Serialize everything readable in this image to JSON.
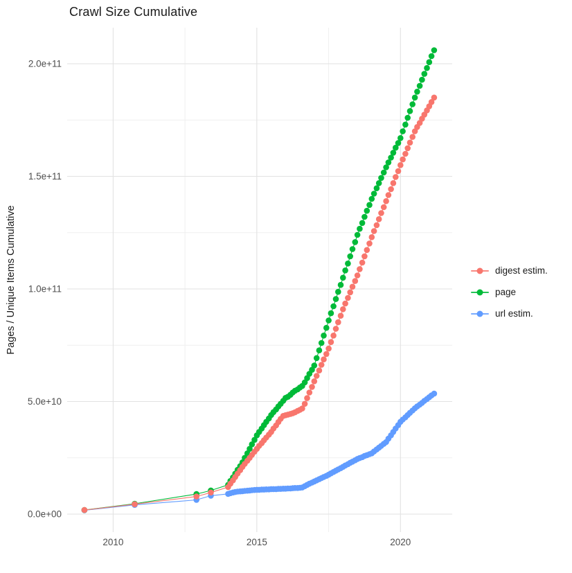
{
  "title": "Crawl Size Cumulative",
  "chart_data": {
    "type": "scatter",
    "title": "Crawl Size Cumulative",
    "xlabel": "",
    "ylabel": "Pages / Unique Items Cumulative",
    "y_unit_note": "series values are in billions (1e9) of pages / unique items",
    "grid": "on",
    "legend_position": "right",
    "x_axis": {
      "range": [
        2008.4,
        2021.8
      ],
      "ticks": [
        {
          "v": 2010,
          "label": "2010"
        },
        {
          "v": 2015,
          "label": "2015"
        },
        {
          "v": 2020,
          "label": "2020"
        }
      ],
      "minor": [
        2012.5,
        2017.5
      ]
    },
    "y_axis": {
      "range_billions": [
        -8,
        216
      ],
      "ticks": [
        {
          "v": 0,
          "label": "0.0e+00"
        },
        {
          "v": 50,
          "label": "5.0e+10"
        },
        {
          "v": 100,
          "label": "1.0e+11"
        },
        {
          "v": 150,
          "label": "1.5e+11"
        },
        {
          "v": 200,
          "label": "2.0e+11"
        }
      ],
      "minor": [
        25,
        75,
        125,
        175
      ]
    },
    "series": [
      {
        "name": "digest estim.",
        "color": "#F8766D",
        "points": [
          [
            2009.0,
            1.8
          ],
          [
            2010.75,
            4.4
          ],
          [
            2012.9,
            7.8
          ],
          [
            2013.4,
            9.6
          ],
          [
            2014.0,
            12.0
          ],
          [
            2014.08,
            13.5
          ],
          [
            2014.17,
            15.0
          ],
          [
            2014.25,
            16.5
          ],
          [
            2014.33,
            18.0
          ],
          [
            2014.42,
            19.5
          ],
          [
            2014.5,
            21.0
          ],
          [
            2014.58,
            22.3
          ],
          [
            2014.67,
            23.7
          ],
          [
            2014.75,
            25.0
          ],
          [
            2014.83,
            26.3
          ],
          [
            2014.92,
            27.7
          ],
          [
            2015.0,
            29.0
          ],
          [
            2015.08,
            30.3
          ],
          [
            2015.17,
            31.5
          ],
          [
            2015.25,
            32.8
          ],
          [
            2015.33,
            34.0
          ],
          [
            2015.42,
            35.3
          ],
          [
            2015.5,
            36.5
          ],
          [
            2015.58,
            38.0
          ],
          [
            2015.67,
            39.4
          ],
          [
            2015.75,
            40.9
          ],
          [
            2015.83,
            42.3
          ],
          [
            2015.92,
            43.6
          ],
          [
            2016.0,
            43.9
          ],
          [
            2016.08,
            44.2
          ],
          [
            2016.17,
            44.5
          ],
          [
            2016.25,
            44.8
          ],
          [
            2016.33,
            45.2
          ],
          [
            2016.42,
            45.8
          ],
          [
            2016.5,
            46.3
          ],
          [
            2016.58,
            46.9
          ],
          [
            2016.67,
            49.0
          ],
          [
            2016.75,
            51.5
          ],
          [
            2016.83,
            54.0
          ],
          [
            2016.92,
            56.5
          ],
          [
            2017.0,
            59.0
          ],
          [
            2017.08,
            61.4
          ],
          [
            2017.17,
            63.8
          ],
          [
            2017.25,
            66.3
          ],
          [
            2017.33,
            68.7
          ],
          [
            2017.42,
            71.1
          ],
          [
            2017.5,
            73.5
          ],
          [
            2017.58,
            76.4
          ],
          [
            2017.67,
            79.3
          ],
          [
            2017.75,
            82.3
          ],
          [
            2017.83,
            85.2
          ],
          [
            2017.92,
            88.1
          ],
          [
            2018.0,
            91.0
          ],
          [
            2018.08,
            93.5
          ],
          [
            2018.17,
            96.0
          ],
          [
            2018.25,
            98.5
          ],
          [
            2018.33,
            101.0
          ],
          [
            2018.42,
            103.5
          ],
          [
            2018.5,
            106.0
          ],
          [
            2018.58,
            108.8
          ],
          [
            2018.67,
            111.7
          ],
          [
            2018.75,
            114.5
          ],
          [
            2018.83,
            117.3
          ],
          [
            2018.92,
            120.2
          ],
          [
            2019.0,
            123.0
          ],
          [
            2019.08,
            125.7
          ],
          [
            2019.17,
            128.3
          ],
          [
            2019.25,
            131.0
          ],
          [
            2019.33,
            133.7
          ],
          [
            2019.42,
            136.3
          ],
          [
            2019.5,
            139.0
          ],
          [
            2019.58,
            141.7
          ],
          [
            2019.67,
            144.3
          ],
          [
            2019.75,
            147.0
          ],
          [
            2019.83,
            149.7
          ],
          [
            2019.92,
            152.3
          ],
          [
            2020.0,
            155.0
          ],
          [
            2020.08,
            157.5
          ],
          [
            2020.17,
            160.0
          ],
          [
            2020.25,
            162.5
          ],
          [
            2020.33,
            165.0
          ],
          [
            2020.42,
            167.5
          ],
          [
            2020.5,
            170.0
          ],
          [
            2020.58,
            171.9
          ],
          [
            2020.67,
            173.7
          ],
          [
            2020.75,
            175.6
          ],
          [
            2020.83,
            177.4
          ],
          [
            2020.92,
            179.3
          ],
          [
            2021.0,
            181.1
          ],
          [
            2021.08,
            183.0
          ],
          [
            2021.17,
            185.0
          ]
        ]
      },
      {
        "name": "page",
        "color": "#00BA38",
        "points": [
          [
            2009.0,
            1.8
          ],
          [
            2010.75,
            4.6
          ],
          [
            2012.9,
            8.9
          ],
          [
            2013.4,
            10.5
          ],
          [
            2014.0,
            13.0
          ],
          [
            2014.08,
            14.7
          ],
          [
            2014.17,
            16.3
          ],
          [
            2014.25,
            18.0
          ],
          [
            2014.33,
            19.7
          ],
          [
            2014.42,
            21.3
          ],
          [
            2014.5,
            23.0
          ],
          [
            2014.58,
            25.0
          ],
          [
            2014.67,
            27.0
          ],
          [
            2014.75,
            29.0
          ],
          [
            2014.83,
            31.0
          ],
          [
            2014.92,
            33.0
          ],
          [
            2015.0,
            35.0
          ],
          [
            2015.08,
            36.5
          ],
          [
            2015.17,
            38.0
          ],
          [
            2015.25,
            39.5
          ],
          [
            2015.33,
            41.0
          ],
          [
            2015.42,
            42.5
          ],
          [
            2015.5,
            44.0
          ],
          [
            2015.58,
            45.3
          ],
          [
            2015.67,
            46.5
          ],
          [
            2015.75,
            47.8
          ],
          [
            2015.83,
            49.0
          ],
          [
            2015.92,
            50.3
          ],
          [
            2016.0,
            51.6
          ],
          [
            2016.08,
            52.1
          ],
          [
            2016.17,
            53.0
          ],
          [
            2016.25,
            54.0
          ],
          [
            2016.33,
            54.8
          ],
          [
            2016.42,
            55.4
          ],
          [
            2016.5,
            56.2
          ],
          [
            2016.58,
            56.9
          ],
          [
            2016.67,
            58.5
          ],
          [
            2016.75,
            60.4
          ],
          [
            2016.83,
            62.3
          ],
          [
            2016.92,
            64.1
          ],
          [
            2017.0,
            66.0
          ],
          [
            2017.08,
            69.3
          ],
          [
            2017.17,
            72.7
          ],
          [
            2017.25,
            76.0
          ],
          [
            2017.33,
            79.3
          ],
          [
            2017.42,
            82.7
          ],
          [
            2017.5,
            86.0
          ],
          [
            2017.58,
            89.2
          ],
          [
            2017.67,
            92.3
          ],
          [
            2017.75,
            95.5
          ],
          [
            2017.83,
            98.7
          ],
          [
            2017.92,
            101.8
          ],
          [
            2018.0,
            105.0
          ],
          [
            2018.08,
            108.2
          ],
          [
            2018.17,
            111.3
          ],
          [
            2018.25,
            114.5
          ],
          [
            2018.33,
            117.7
          ],
          [
            2018.42,
            120.8
          ],
          [
            2018.5,
            124.0
          ],
          [
            2018.58,
            126.7
          ],
          [
            2018.67,
            129.3
          ],
          [
            2018.75,
            132.0
          ],
          [
            2018.83,
            134.7
          ],
          [
            2018.92,
            137.3
          ],
          [
            2019.0,
            140.0
          ],
          [
            2019.08,
            142.3
          ],
          [
            2019.17,
            144.7
          ],
          [
            2019.25,
            147.0
          ],
          [
            2019.33,
            149.3
          ],
          [
            2019.42,
            151.7
          ],
          [
            2019.5,
            154.0
          ],
          [
            2019.58,
            156.2
          ],
          [
            2019.67,
            158.3
          ],
          [
            2019.75,
            160.5
          ],
          [
            2019.83,
            162.7
          ],
          [
            2019.92,
            164.8
          ],
          [
            2020.0,
            167.0
          ],
          [
            2020.08,
            170.0
          ],
          [
            2020.17,
            173.0
          ],
          [
            2020.25,
            176.0
          ],
          [
            2020.33,
            179.0
          ],
          [
            2020.42,
            182.0
          ],
          [
            2020.5,
            185.0
          ],
          [
            2020.58,
            187.6
          ],
          [
            2020.67,
            190.2
          ],
          [
            2020.75,
            192.9
          ],
          [
            2020.83,
            195.5
          ],
          [
            2020.92,
            198.1
          ],
          [
            2021.0,
            200.7
          ],
          [
            2021.08,
            203.4
          ],
          [
            2021.17,
            206.0
          ]
        ]
      },
      {
        "name": "url estim.",
        "color": "#619CFF",
        "points": [
          [
            2009.0,
            1.7
          ],
          [
            2010.75,
            4.1
          ],
          [
            2012.9,
            6.3
          ],
          [
            2013.4,
            8.2
          ],
          [
            2014.0,
            9.0
          ],
          [
            2014.08,
            9.3
          ],
          [
            2014.17,
            9.6
          ],
          [
            2014.25,
            9.8
          ],
          [
            2014.33,
            10.0
          ],
          [
            2014.42,
            10.1
          ],
          [
            2014.5,
            10.2
          ],
          [
            2014.58,
            10.3
          ],
          [
            2014.67,
            10.4
          ],
          [
            2014.75,
            10.5
          ],
          [
            2014.83,
            10.6
          ],
          [
            2014.92,
            10.7
          ],
          [
            2015.0,
            10.8
          ],
          [
            2015.08,
            10.8
          ],
          [
            2015.17,
            10.9
          ],
          [
            2015.25,
            10.9
          ],
          [
            2015.33,
            11.0
          ],
          [
            2015.42,
            11.0
          ],
          [
            2015.5,
            11.1
          ],
          [
            2015.58,
            11.1
          ],
          [
            2015.67,
            11.1
          ],
          [
            2015.75,
            11.2
          ],
          [
            2015.83,
            11.2
          ],
          [
            2015.92,
            11.3
          ],
          [
            2016.0,
            11.3
          ],
          [
            2016.08,
            11.4
          ],
          [
            2016.17,
            11.4
          ],
          [
            2016.25,
            11.5
          ],
          [
            2016.33,
            11.6
          ],
          [
            2016.42,
            11.6
          ],
          [
            2016.5,
            11.7
          ],
          [
            2016.58,
            11.8
          ],
          [
            2016.67,
            12.4
          ],
          [
            2016.75,
            13.0
          ],
          [
            2016.83,
            13.5
          ],
          [
            2016.92,
            14.0
          ],
          [
            2017.0,
            14.5
          ],
          [
            2017.08,
            15.0
          ],
          [
            2017.17,
            15.5
          ],
          [
            2017.25,
            16.0
          ],
          [
            2017.33,
            16.5
          ],
          [
            2017.42,
            17.0
          ],
          [
            2017.5,
            17.5
          ],
          [
            2017.58,
            18.1
          ],
          [
            2017.67,
            18.7
          ],
          [
            2017.75,
            19.3
          ],
          [
            2017.83,
            19.8
          ],
          [
            2017.92,
            20.4
          ],
          [
            2018.0,
            21.0
          ],
          [
            2018.08,
            21.6
          ],
          [
            2018.17,
            22.2
          ],
          [
            2018.25,
            22.8
          ],
          [
            2018.33,
            23.3
          ],
          [
            2018.42,
            23.9
          ],
          [
            2018.5,
            24.5
          ],
          [
            2018.58,
            24.9
          ],
          [
            2018.67,
            25.3
          ],
          [
            2018.75,
            25.8
          ],
          [
            2018.83,
            26.2
          ],
          [
            2018.92,
            26.6
          ],
          [
            2019.0,
            27.0
          ],
          [
            2019.08,
            27.8
          ],
          [
            2019.17,
            28.7
          ],
          [
            2019.25,
            29.5
          ],
          [
            2019.33,
            30.3
          ],
          [
            2019.42,
            31.2
          ],
          [
            2019.5,
            32.0
          ],
          [
            2019.58,
            33.5
          ],
          [
            2019.67,
            35.0
          ],
          [
            2019.75,
            36.5
          ],
          [
            2019.83,
            38.0
          ],
          [
            2019.92,
            39.5
          ],
          [
            2020.0,
            41.0
          ],
          [
            2020.08,
            42.0
          ],
          [
            2020.17,
            43.0
          ],
          [
            2020.25,
            44.0
          ],
          [
            2020.33,
            45.0
          ],
          [
            2020.42,
            46.0
          ],
          [
            2020.5,
            47.0
          ],
          [
            2020.58,
            47.8
          ],
          [
            2020.67,
            48.6
          ],
          [
            2020.75,
            49.4
          ],
          [
            2020.83,
            50.3
          ],
          [
            2020.92,
            51.1
          ],
          [
            2021.0,
            51.9
          ],
          [
            2021.08,
            52.7
          ],
          [
            2021.17,
            53.5
          ]
        ]
      }
    ]
  },
  "colors": {
    "background": "#ffffff",
    "grid_major": "#e2e2e2",
    "grid_minor": "#efefef",
    "axis_text": "#4d4d4d",
    "title_text": "#1a1a1a"
  }
}
